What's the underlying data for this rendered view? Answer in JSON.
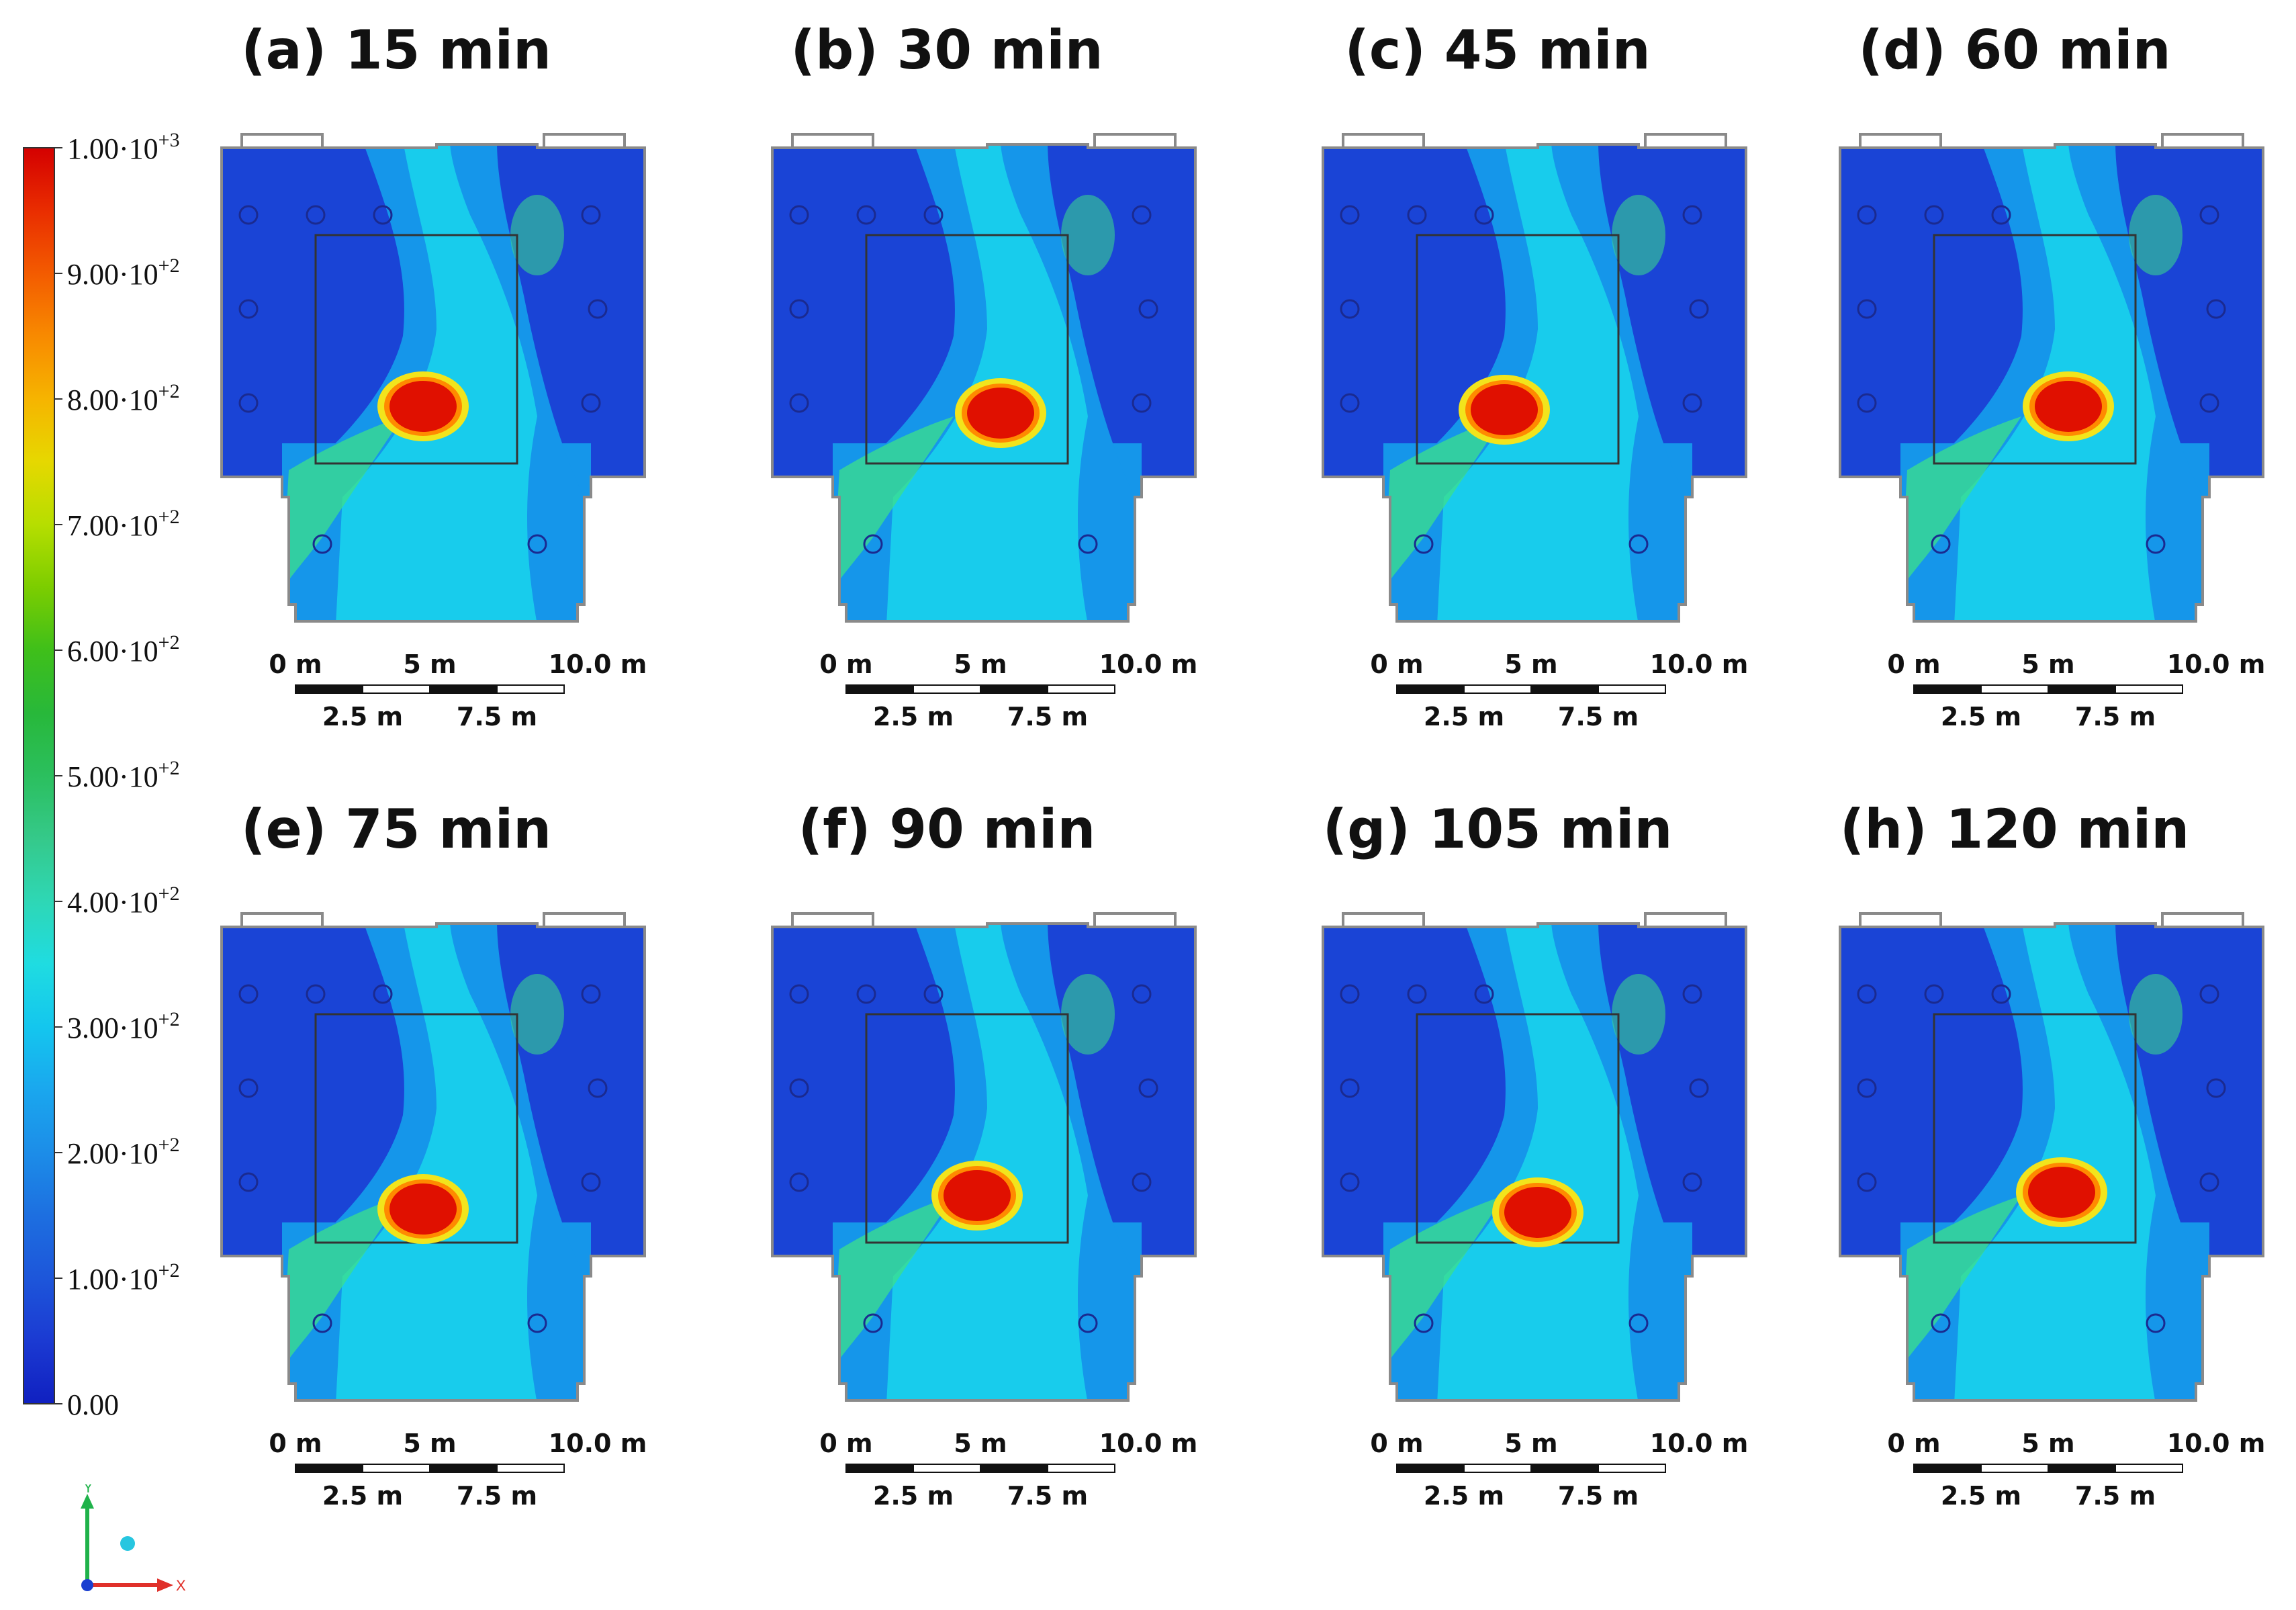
{
  "colorbar": {
    "labels": [
      "1.00·10+3",
      "9.00·10+2",
      "8.00·10+2",
      "7.00·10+2",
      "6.00·10+2",
      "5.00·10+2",
      "4.00·10+2",
      "3.00·10+2",
      "2.00·10+2",
      "1.00·10+2",
      "0.00"
    ],
    "gradient_colors": [
      "#d40000",
      "#e92d00",
      "#f35b00",
      "#f88a00",
      "#f6b400",
      "#e6d800",
      "#b6de00",
      "#7ccd00",
      "#3fbf1a",
      "#28b83a",
      "#2bbf5e",
      "#35c98a",
      "#2ed7b5",
      "#1fdce1",
      "#14c6ee",
      "#1aa7ee",
      "#1c8de8",
      "#1d6fe0",
      "#1d56da",
      "#1b3ad2",
      "#1020c0"
    ]
  },
  "panels": [
    {
      "title": "(a) 15 min",
      "scale": {
        "top": [
          "0 m",
          "5 m",
          "10.0 m"
        ],
        "bottom": [
          "2.5 m",
          "7.5 m"
        ]
      }
    },
    {
      "title": "(b) 30 min",
      "scale": {
        "top": [
          "0 m",
          "5 m",
          "10.0 m"
        ],
        "bottom": [
          "2.5 m",
          "7.5 m"
        ]
      }
    },
    {
      "title": "(c) 45 min",
      "scale": {
        "top": [
          "0 m",
          "5 m",
          "10.0 m"
        ],
        "bottom": [
          "2.5 m",
          "7.5 m"
        ]
      }
    },
    {
      "title": "(d) 60 min",
      "scale": {
        "top": [
          "0 m",
          "5 m",
          "10.0 m"
        ],
        "bottom": [
          "2.5 m",
          "7.5 m"
        ]
      }
    },
    {
      "title": "(e) 75 min",
      "scale": {
        "top": [
          "0 m",
          "5 m",
          "10.0 m"
        ],
        "bottom": [
          "2.5 m",
          "7.5 m"
        ]
      }
    },
    {
      "title": "(f) 90 min",
      "scale": {
        "top": [
          "0 m",
          "5 m",
          "10.0 m"
        ],
        "bottom": [
          "2.5 m",
          "7.5 m"
        ]
      }
    },
    {
      "title": "(g) 105 min",
      "scale": {
        "top": [
          "0 m",
          "5 m",
          "10.0 m"
        ],
        "bottom": [
          "2.5 m",
          "7.5 m"
        ]
      }
    },
    {
      "title": "(h) 120 min",
      "scale": {
        "top": [
          "0 m",
          "5 m",
          "10.0 m"
        ],
        "bottom": [
          "2.5 m",
          "7.5 m"
        ]
      }
    }
  ],
  "map_colors": {
    "low": "#1a44d6",
    "mid_low": "#1596ea",
    "mid": "#19d6ec",
    "mid_high": "#3ce08a",
    "green": "#6fd43a",
    "hot_edge": "#f2e41c",
    "hot_ring": "#ff8a00",
    "hot_core": "#e01000",
    "outline": "#8a8a8a"
  },
  "axis_triad": {
    "y": "Y",
    "x": "X"
  }
}
